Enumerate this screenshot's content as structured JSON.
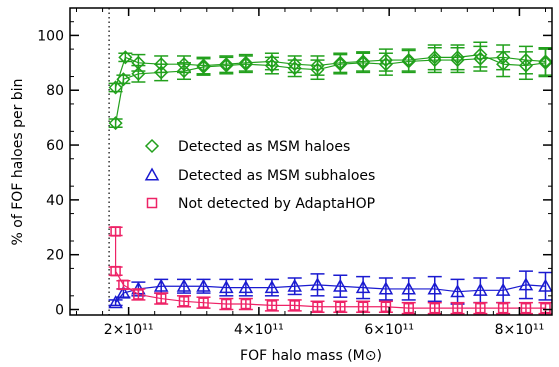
{
  "chart_data": {
    "type": "scatter",
    "title": "",
    "xlabel": "FOF halo mass (M⊙)",
    "ylabel": "% of FOF haloes per bin",
    "xlim": [
      110000000000.0,
      850000000000.0
    ],
    "ylim": [
      -2,
      110
    ],
    "x_ticks": [
      {
        "value": 200000000000.0,
        "label": "2×10¹¹"
      },
      {
        "value": 400000000000.0,
        "label": "4×10¹¹"
      },
      {
        "value": 600000000000.0,
        "label": "6×10¹¹"
      },
      {
        "value": 800000000000.0,
        "label": "8×10¹¹"
      }
    ],
    "y_ticks": [
      {
        "value": 0,
        "label": "0"
      },
      {
        "value": 20,
        "label": "20"
      },
      {
        "value": 40,
        "label": "40"
      },
      {
        "value": 60,
        "label": "60"
      },
      {
        "value": 80,
        "label": "80"
      },
      {
        "value": 100,
        "label": "100"
      }
    ],
    "vline_x": 170000000000.0,
    "grid": false,
    "legend_position": "center",
    "series": [
      {
        "name": "Detected as MSM haloes",
        "color": "#22a01c",
        "marker": "diamond",
        "points": [
          {
            "x": 180000000000.0,
            "y": 68,
            "err": 1.5
          },
          {
            "x": 192000000000.0,
            "y": 84,
            "err": 1.5
          },
          {
            "x": 215000000000.0,
            "y": 86,
            "err": 3
          },
          {
            "x": 250000000000.0,
            "y": 86.5,
            "err": 3
          },
          {
            "x": 285000000000.0,
            "y": 87,
            "err": 3
          },
          {
            "x": 315000000000.0,
            "y": 88.5,
            "err": 3
          },
          {
            "x": 350000000000.0,
            "y": 89,
            "err": 3
          },
          {
            "x": 380000000000.0,
            "y": 89.5,
            "err": 3
          },
          {
            "x": 420000000000.0,
            "y": 89,
            "err": 3
          },
          {
            "x": 455000000000.0,
            "y": 88,
            "err": 3
          },
          {
            "x": 490000000000.0,
            "y": 87.5,
            "err": 3.5
          },
          {
            "x": 525000000000.0,
            "y": 89.5,
            "err": 3.5
          },
          {
            "x": 560000000000.0,
            "y": 90,
            "err": 3.5
          },
          {
            "x": 595000000000.0,
            "y": 89.5,
            "err": 4
          },
          {
            "x": 630000000000.0,
            "y": 90.5,
            "err": 4
          },
          {
            "x": 670000000000.0,
            "y": 91,
            "err": 4.5
          },
          {
            "x": 705000000000.0,
            "y": 91,
            "err": 4.5
          },
          {
            "x": 740000000000.0,
            "y": 91.5,
            "err": 4.5
          },
          {
            "x": 775000000000.0,
            "y": 92,
            "err": 4.5
          },
          {
            "x": 810000000000.0,
            "y": 91,
            "err": 5
          },
          {
            "x": 840000000000.0,
            "y": 90.5,
            "err": 5
          }
        ],
        "upper_points": [
          {
            "x": 180000000000.0,
            "y": 81,
            "err": 1.5
          },
          {
            "x": 195000000000.0,
            "y": 92,
            "err": 1.5
          },
          {
            "x": 215000000000.0,
            "y": 90,
            "err": 3
          },
          {
            "x": 250000000000.0,
            "y": 89.5,
            "err": 3
          },
          {
            "x": 285000000000.0,
            "y": 89.5,
            "err": 3
          },
          {
            "x": 315000000000.0,
            "y": 89,
            "err": 3
          },
          {
            "x": 350000000000.0,
            "y": 89.5,
            "err": 3
          },
          {
            "x": 380000000000.0,
            "y": 90,
            "err": 3
          },
          {
            "x": 420000000000.0,
            "y": 90.5,
            "err": 3
          },
          {
            "x": 455000000000.0,
            "y": 89.5,
            "err": 3
          },
          {
            "x": 490000000000.0,
            "y": 89,
            "err": 3.5
          },
          {
            "x": 525000000000.0,
            "y": 90,
            "err": 3.5
          },
          {
            "x": 560000000000.0,
            "y": 90.5,
            "err": 3.5
          },
          {
            "x": 595000000000.0,
            "y": 91,
            "err": 4
          },
          {
            "x": 630000000000.0,
            "y": 91,
            "err": 4
          },
          {
            "x": 670000000000.0,
            "y": 92,
            "err": 4.5
          },
          {
            "x": 705000000000.0,
            "y": 92,
            "err": 4.5
          },
          {
            "x": 740000000000.0,
            "y": 93,
            "err": 4.5
          },
          {
            "x": 775000000000.0,
            "y": 89.5,
            "err": 4.5
          },
          {
            "x": 810000000000.0,
            "y": 89,
            "err": 5
          },
          {
            "x": 840000000000.0,
            "y": 90,
            "err": 5
          }
        ]
      },
      {
        "name": "Detected as MSM subhaloes",
        "color": "#1a1ad0",
        "marker": "triangle",
        "points": [
          {
            "x": 180000000000.0,
            "y": 2.5,
            "err": 1
          },
          {
            "x": 192000000000.0,
            "y": 6,
            "err": 1.5
          },
          {
            "x": 215000000000.0,
            "y": 7.5,
            "err": 2.5
          },
          {
            "x": 250000000000.0,
            "y": 8.5,
            "err": 2.5
          },
          {
            "x": 285000000000.0,
            "y": 8.5,
            "err": 2.5
          },
          {
            "x": 315000000000.0,
            "y": 8.5,
            "err": 2.5
          },
          {
            "x": 350000000000.0,
            "y": 8,
            "err": 3
          },
          {
            "x": 380000000000.0,
            "y": 8,
            "err": 3
          },
          {
            "x": 420000000000.0,
            "y": 8,
            "err": 3
          },
          {
            "x": 455000000000.0,
            "y": 8.5,
            "err": 3
          },
          {
            "x": 490000000000.0,
            "y": 9,
            "err": 4
          },
          {
            "x": 525000000000.0,
            "y": 8.5,
            "err": 4
          },
          {
            "x": 560000000000.0,
            "y": 8,
            "err": 4
          },
          {
            "x": 595000000000.0,
            "y": 7.5,
            "err": 4
          },
          {
            "x": 630000000000.0,
            "y": 7.5,
            "err": 4
          },
          {
            "x": 670000000000.0,
            "y": 7.5,
            "err": 4.5
          },
          {
            "x": 705000000000.0,
            "y": 6.5,
            "err": 4.5
          },
          {
            "x": 740000000000.0,
            "y": 7,
            "err": 4.5
          },
          {
            "x": 775000000000.0,
            "y": 7,
            "err": 4.5
          },
          {
            "x": 810000000000.0,
            "y": 9,
            "err": 5
          },
          {
            "x": 840000000000.0,
            "y": 8.5,
            "err": 5
          }
        ]
      },
      {
        "name": "Not detected by AdaptaHOP",
        "color": "#ee2266",
        "marker": "square",
        "points": [
          {
            "x": 180000000000.0,
            "y": 28.5,
            "err": 1.5
          },
          {
            "x": 180000000000.0,
            "y": 14,
            "err": 1.5
          },
          {
            "x": 192000000000.0,
            "y": 9,
            "err": 1.5
          },
          {
            "x": 215000000000.0,
            "y": 5.5,
            "err": 2
          },
          {
            "x": 250000000000.0,
            "y": 4,
            "err": 2
          },
          {
            "x": 285000000000.0,
            "y": 3,
            "err": 2
          },
          {
            "x": 315000000000.0,
            "y": 2.5,
            "err": 2
          },
          {
            "x": 350000000000.0,
            "y": 2,
            "err": 2
          },
          {
            "x": 380000000000.0,
            "y": 2,
            "err": 2
          },
          {
            "x": 420000000000.0,
            "y": 1.5,
            "err": 2
          },
          {
            "x": 455000000000.0,
            "y": 1.5,
            "err": 2
          },
          {
            "x": 490000000000.0,
            "y": 1,
            "err": 2
          },
          {
            "x": 525000000000.0,
            "y": 1,
            "err": 2
          },
          {
            "x": 560000000000.0,
            "y": 1,
            "err": 2
          },
          {
            "x": 595000000000.0,
            "y": 1,
            "err": 2
          },
          {
            "x": 630000000000.0,
            "y": 0.5,
            "err": 2
          },
          {
            "x": 670000000000.0,
            "y": 0.5,
            "err": 2
          },
          {
            "x": 705000000000.0,
            "y": 0.5,
            "err": 2
          },
          {
            "x": 740000000000.0,
            "y": 0.5,
            "err": 2
          },
          {
            "x": 775000000000.0,
            "y": 0.5,
            "err": 2
          },
          {
            "x": 810000000000.0,
            "y": 0.5,
            "err": 2
          },
          {
            "x": 840000000000.0,
            "y": 0.5,
            "err": 2
          }
        ]
      }
    ]
  }
}
